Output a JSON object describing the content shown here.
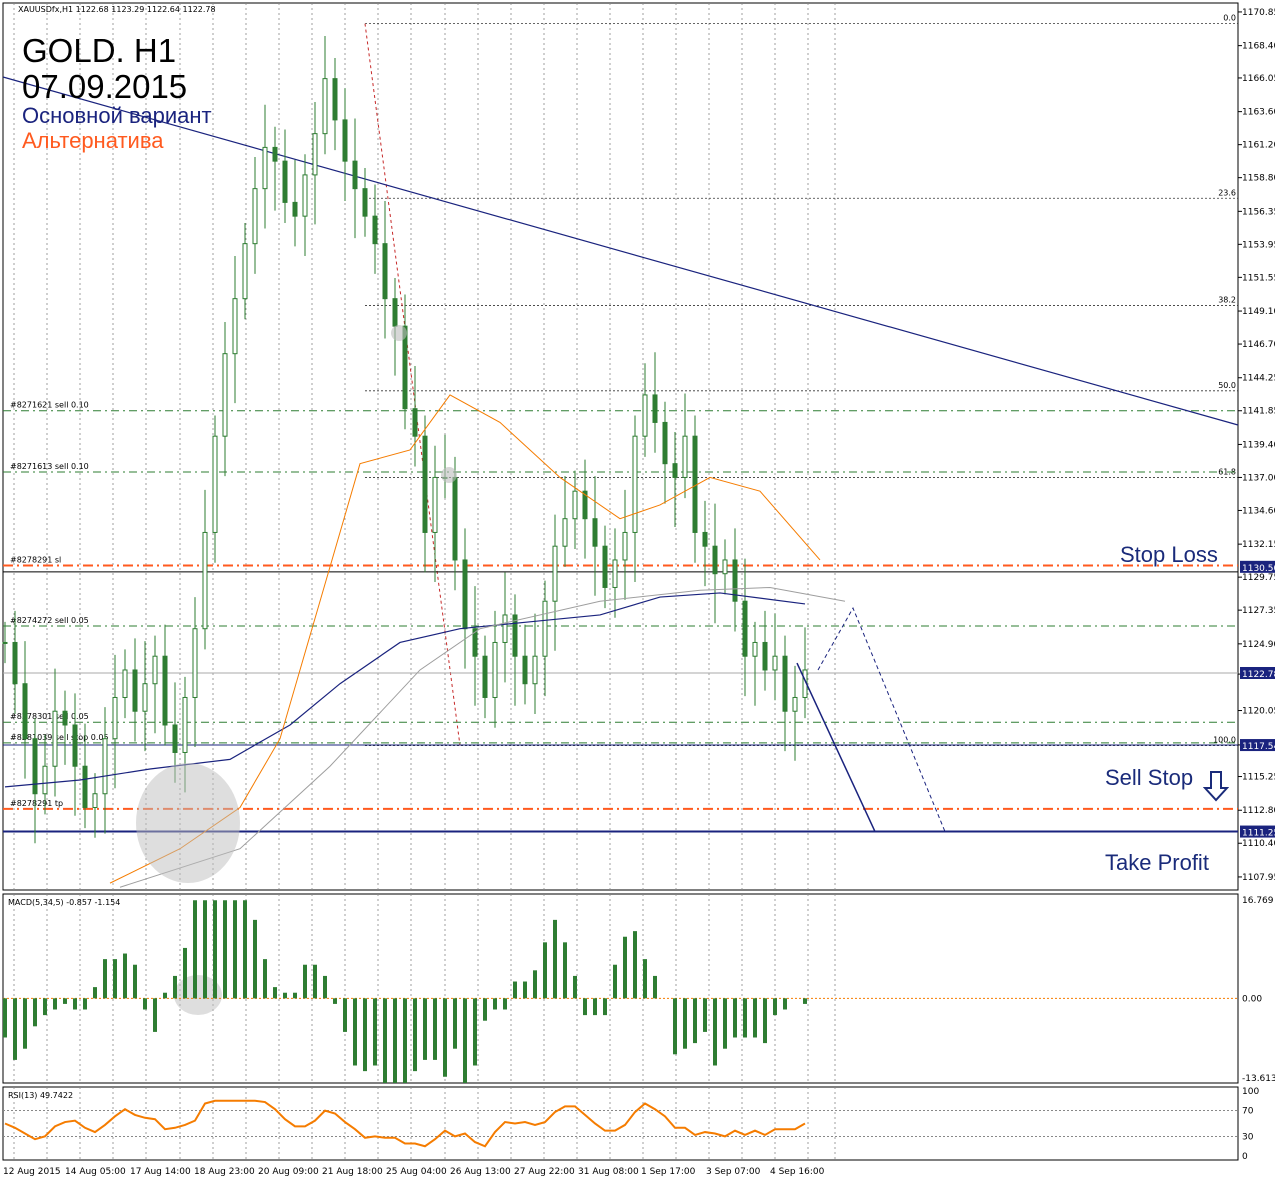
{
  "window": {
    "symbol_line": "XAUUSDfx,H1  1122.68 1123.29 1122.64 1122.78"
  },
  "header": {
    "title": "GOLD. H1",
    "date": "07.09.2015",
    "main_label": "Основной вариант",
    "alt_label": "Альтернатива",
    "main_color": "#1a237e",
    "alt_color": "#ff5a1f"
  },
  "levels": {
    "stop_loss": "Stop Loss",
    "sell_stop": "Sell Stop",
    "take_profit": "Take Profit"
  },
  "chart_data": {
    "type": "candlestick",
    "price_axis_ticks": [
      "1170.85",
      "1168.40",
      "1166.05",
      "1163.60",
      "1161.20",
      "1158.80",
      "1156.35",
      "1153.95",
      "1151.55",
      "1149.10",
      "1146.70",
      "1144.25",
      "1141.85",
      "1139.40",
      "1137.00",
      "1134.60",
      "1132.15",
      "1129.75",
      "1127.35",
      "1124.90",
      "1122.70",
      "1120.05",
      "1117.55",
      "1115.25",
      "1112.80",
      "1110.40",
      "1107.95"
    ],
    "price_badges": [
      {
        "label": "1130.50",
        "value": 1130.5
      },
      {
        "label": "1122.78",
        "value": 1122.78
      },
      {
        "label": "1117.54",
        "value": 1117.54
      },
      {
        "label": "1111.25",
        "value": 1111.25
      }
    ],
    "time_axis_labels": [
      "12 Aug 2015",
      "14 Aug 05:00",
      "17 Aug 14:00",
      "18 Aug 23:00",
      "20 Aug 09:00",
      "21 Aug 18:00",
      "25 Aug 04:00",
      "26 Aug 13:00",
      "27 Aug 22:00",
      "31 Aug 08:00",
      "1 Sep 17:00",
      "3 Sep 07:00",
      "4 Sep 16:00"
    ],
    "fibonacci": [
      {
        "label": "0.0",
        "value": 1170.0
      },
      {
        "label": "23.6",
        "value": 1157.3
      },
      {
        "label": "38.2",
        "value": 1149.5
      },
      {
        "label": "50.0",
        "value": 1143.3
      },
      {
        "label": "61.8",
        "value": 1137.0
      },
      {
        "label": "100.0",
        "value": 1117.5
      }
    ],
    "orders": [
      {
        "label": "#8271621 sell 0.10",
        "value": 1141.85
      },
      {
        "label": "#8271613 sell 0.10",
        "value": 1137.4
      },
      {
        "label": "#8278291 sl",
        "value": 1130.6
      },
      {
        "label": "#8274272 sell 0.05",
        "value": 1126.2
      },
      {
        "label": "#8278301 sell 0.05",
        "value": 1119.2
      },
      {
        "label": "#8281039 sell stop 0.05",
        "value": 1117.7
      },
      {
        "label": "#8278291 tp",
        "value": 1112.9
      }
    ],
    "key_levels": {
      "stop_loss": 1130.5,
      "sell_stop": 1117.54,
      "take_profit": 1111.25,
      "current": 1122.78
    },
    "price_series": [
      1125,
      1122,
      1118,
      1114,
      1116,
      1120,
      1119,
      1116,
      1113,
      1114,
      1118,
      1121,
      1123,
      1120,
      1122,
      1124,
      1119,
      1117,
      1121,
      1126,
      1133,
      1140,
      1146,
      1150,
      1154,
      1158,
      1161,
      1160,
      1157,
      1156,
      1159,
      1162,
      1166,
      1163,
      1160,
      1158,
      1156,
      1154,
      1150,
      1148,
      1142,
      1140,
      1133,
      1137,
      1137,
      1131,
      1126,
      1124,
      1121,
      1125,
      1127,
      1124,
      1122,
      1124,
      1128,
      1132,
      1134,
      1136,
      1134,
      1132,
      1129,
      1131,
      1133,
      1140,
      1143,
      1141,
      1138,
      1137,
      1140,
      1133,
      1132,
      1130,
      1131,
      1128,
      1124,
      1125,
      1123,
      1124,
      1120,
      1121,
      1123
    ],
    "macd": {
      "label": "MACD(5,34,5) -0.857 -1.154",
      "ticks": [
        "16.769",
        "0.00",
        "-13.613"
      ],
      "range": [
        -13.613,
        16.769
      ]
    },
    "rsi": {
      "label": "RSI(13) 49.7422",
      "ticks": [
        "100",
        "70",
        "30",
        "0"
      ],
      "levels": [
        70,
        30
      ]
    }
  }
}
